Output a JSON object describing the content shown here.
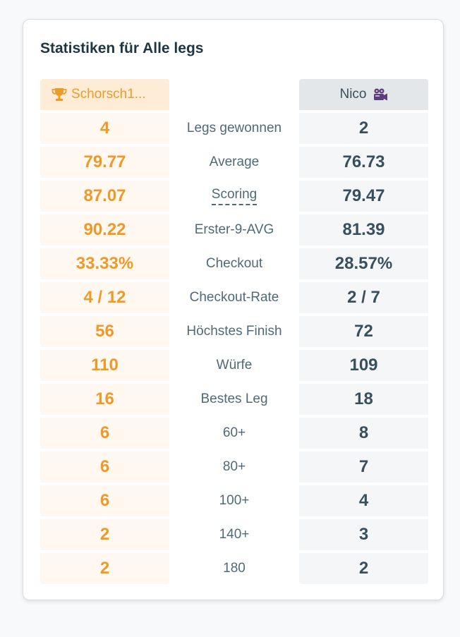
{
  "card": {
    "title": "Statistiken für Alle legs"
  },
  "players": {
    "p1": {
      "name": "Schorsch1...",
      "icon": "trophy-icon"
    },
    "p2": {
      "name": "Nico",
      "icon": "video-camera-icon"
    }
  },
  "colors": {
    "p1_accent": "#ee9a2a",
    "p1_header_bg": "#feecd7",
    "p1_cell_bg": "#fff8f0",
    "p2_text": "#38505c",
    "p2_header_bg": "#e3e7ea",
    "p2_cell_bg": "#f4f6f7"
  },
  "stats": [
    {
      "label": "Legs gewonnen",
      "p1": "4",
      "p2": "2"
    },
    {
      "label": "Average",
      "p1": "79.77",
      "p2": "76.73"
    },
    {
      "label": "Scoring",
      "p1": "87.07",
      "p2": "79.47",
      "dotted": true
    },
    {
      "label": "Erster-9-AVG",
      "p1": "90.22",
      "p2": "81.39"
    },
    {
      "label": "Checkout",
      "p1": "33.33%",
      "p2": "28.57%"
    },
    {
      "label": "Checkout-Rate",
      "p1": "4 / 12",
      "p2": "2 / 7"
    },
    {
      "label": "Höchstes Finish",
      "p1": "56",
      "p2": "72"
    },
    {
      "label": "Würfe",
      "p1": "110",
      "p2": "109"
    },
    {
      "label": "Bestes Leg",
      "p1": "16",
      "p2": "18"
    },
    {
      "label": "60+",
      "p1": "6",
      "p2": "8"
    },
    {
      "label": "80+",
      "p1": "6",
      "p2": "7"
    },
    {
      "label": "100+",
      "p1": "6",
      "p2": "4"
    },
    {
      "label": "140+",
      "p1": "2",
      "p2": "3"
    },
    {
      "label": "180",
      "p1": "2",
      "p2": "2"
    }
  ]
}
